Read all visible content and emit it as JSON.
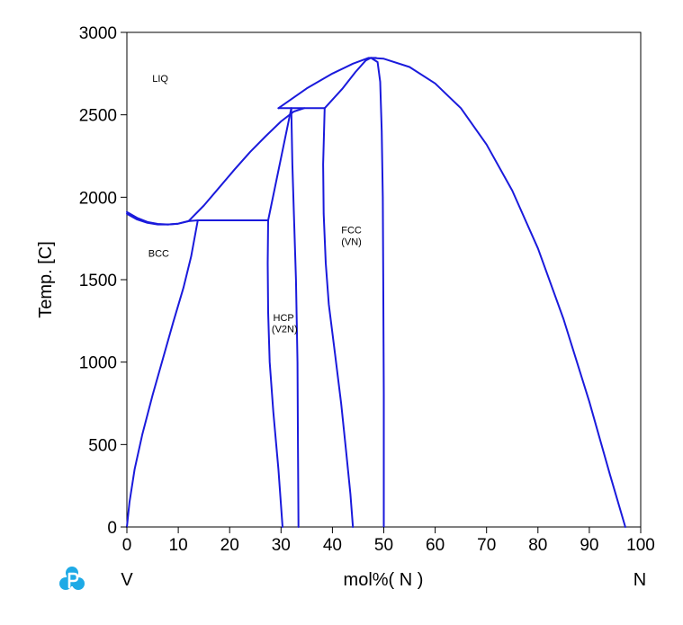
{
  "chart_data": {
    "type": "line",
    "title": "",
    "xlabel": "mol%( N )",
    "ylabel": "Temp. [C]",
    "xlim": [
      0,
      100
    ],
    "ylim": [
      0,
      3000
    ],
    "x_ticks": [
      "0",
      "10",
      "20",
      "30",
      "40",
      "50",
      "60",
      "70",
      "80",
      "90",
      "100"
    ],
    "y_ticks": [
      "0",
      "500",
      "1000",
      "1500",
      "2000",
      "2500",
      "3000"
    ],
    "grid": false,
    "legend": "none",
    "line_color": "#1a1adc",
    "left_element": "V",
    "right_element": "N",
    "logo_icon": "p-logo-icon",
    "region_labels": [
      {
        "text": "LIQ",
        "x": 6.5,
        "y": 2700
      },
      {
        "text": "BCC",
        "x": 6.2,
        "y": 1640
      },
      {
        "text": "HCP",
        "x": 30.5,
        "y": 1250
      },
      {
        "text": "(V2N)",
        "x": 30.7,
        "y": 1180
      },
      {
        "text": "FCC",
        "x": 43.7,
        "y": 1780
      },
      {
        "text": "(VN)",
        "x": 43.7,
        "y": 1710
      }
    ],
    "series": [
      {
        "values": [
          [
            0.0,
            1910
          ],
          [
            2.0,
            1875
          ],
          [
            4.0,
            1850
          ],
          [
            6.0,
            1838
          ],
          [
            8.0,
            1835
          ],
          [
            10.0,
            1840
          ],
          [
            12.0,
            1855
          ]
        ]
      },
      {
        "values": [
          [
            0.0,
            1900
          ],
          [
            2.0,
            1865
          ],
          [
            4.0,
            1845
          ],
          [
            6.0,
            1835
          ],
          [
            8.0,
            1835
          ],
          [
            10.0,
            1840
          ],
          [
            12.0,
            1855
          ],
          [
            13.8,
            1860
          ]
        ]
      },
      {
        "values": [
          [
            12.0,
            1855
          ],
          [
            15.0,
            1950
          ],
          [
            18.0,
            2060
          ],
          [
            21.0,
            2170
          ],
          [
            24.0,
            2275
          ],
          [
            27.0,
            2370
          ],
          [
            30.0,
            2460
          ],
          [
            32.5,
            2520
          ],
          [
            34.5,
            2540
          ]
        ]
      },
      {
        "values": [
          [
            0.0,
            0
          ],
          [
            0.5,
            150
          ],
          [
            1.5,
            350
          ],
          [
            3.0,
            560
          ],
          [
            5.0,
            800
          ],
          [
            7.0,
            1020
          ],
          [
            9.0,
            1240
          ],
          [
            11.0,
            1450
          ],
          [
            12.5,
            1640
          ],
          [
            13.8,
            1860
          ]
        ]
      },
      {
        "values": [
          [
            13.8,
            1860
          ],
          [
            27.5,
            1860
          ]
        ]
      },
      {
        "values": [
          [
            27.5,
            1860
          ],
          [
            27.4,
            1600
          ],
          [
            27.5,
            1300
          ],
          [
            27.8,
            1000
          ],
          [
            28.5,
            700
          ],
          [
            29.5,
            350
          ],
          [
            30.3,
            0
          ]
        ]
      },
      {
        "values": [
          [
            27.5,
            1860
          ],
          [
            32.0,
            2540
          ]
        ]
      },
      {
        "values": [
          [
            32.0,
            2540
          ],
          [
            32.2,
            2200
          ],
          [
            32.5,
            1900
          ],
          [
            32.9,
            1500
          ],
          [
            33.2,
            1000
          ],
          [
            33.3,
            500
          ],
          [
            33.4,
            0
          ]
        ]
      },
      {
        "values": [
          [
            29.5,
            2540
          ],
          [
            38.5,
            2540
          ]
        ]
      },
      {
        "values": [
          [
            38.5,
            2540
          ],
          [
            38.2,
            2200
          ],
          [
            38.3,
            1900
          ],
          [
            38.7,
            1600
          ],
          [
            39.3,
            1350
          ],
          [
            40.5,
            1050
          ],
          [
            41.7,
            750
          ],
          [
            42.7,
            450
          ],
          [
            43.5,
            200
          ],
          [
            44.0,
            0
          ]
        ]
      },
      {
        "values": [
          [
            29.5,
            2540
          ],
          [
            35.0,
            2660
          ],
          [
            40.0,
            2750
          ],
          [
            44.0,
            2810
          ],
          [
            47.0,
            2845
          ],
          [
            48.5,
            2845
          ]
        ]
      },
      {
        "values": [
          [
            38.5,
            2540
          ],
          [
            42.0,
            2660
          ],
          [
            44.5,
            2760
          ],
          [
            46.5,
            2830
          ],
          [
            47.5,
            2845
          ]
        ]
      },
      {
        "values": [
          [
            47.5,
            2845
          ],
          [
            48.8,
            2820
          ],
          [
            49.3,
            2700
          ],
          [
            49.6,
            2400
          ],
          [
            49.8,
            2000
          ],
          [
            49.9,
            1500
          ],
          [
            50.0,
            800
          ],
          [
            50.0,
            0
          ]
        ]
      },
      {
        "values": [
          [
            47.5,
            2845
          ],
          [
            50.0,
            2840
          ],
          [
            55.0,
            2790
          ],
          [
            60.0,
            2690
          ],
          [
            65.0,
            2540
          ],
          [
            70.0,
            2320
          ],
          [
            75.0,
            2040
          ],
          [
            80.0,
            1690
          ],
          [
            85.0,
            1260
          ],
          [
            90.0,
            760
          ],
          [
            94.0,
            320
          ],
          [
            97.0,
            0
          ]
        ]
      }
    ]
  }
}
